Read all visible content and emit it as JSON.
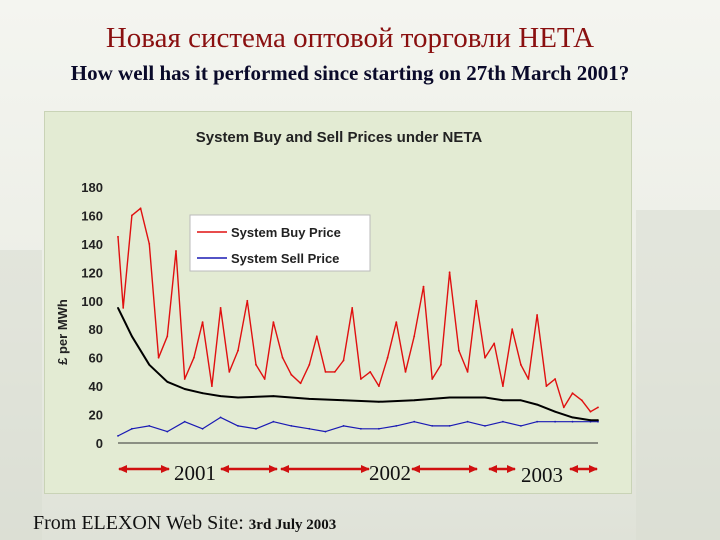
{
  "slide": {
    "title": "Новая система оптовой торговли НЕТА",
    "subtitle": "How well has it performed since starting on 27th March 2001?",
    "footer_source": "From ELEXON Web Site:",
    "footer_date": "3rd July 2003"
  },
  "colors": {
    "buy": "#e01010",
    "sell": "#1a1ab4",
    "trend": "#000000",
    "title": "#8a1010",
    "panel": "#e3ebd3",
    "arrow": "#d01010"
  },
  "chart_data": {
    "type": "line",
    "title": "System Buy and Sell Prices under NETA",
    "ylabel": "£ per MWh",
    "xlabel": "",
    "ylim": [
      0,
      180
    ],
    "yticks": [
      0,
      20,
      40,
      60,
      80,
      100,
      120,
      140,
      160,
      180
    ],
    "x_range": [
      "2001-03-27",
      "2003-07-03"
    ],
    "year_labels": [
      "2001",
      "2002",
      "2003"
    ],
    "legend": {
      "position": "top-left"
    },
    "grid": false,
    "series": [
      {
        "name": "System Buy Price",
        "color": "#e01010",
        "x": [
          "2001-03-27",
          "2001-04-05",
          "2001-04-20",
          "2001-05-05",
          "2001-05-20",
          "2001-06-05",
          "2001-06-20",
          "2001-07-05",
          "2001-07-20",
          "2001-08-05",
          "2001-08-20",
          "2001-09-05",
          "2001-09-20",
          "2001-10-05",
          "2001-10-20",
          "2001-11-05",
          "2001-11-20",
          "2001-12-05",
          "2001-12-20",
          "2002-01-05",
          "2002-01-20",
          "2002-02-05",
          "2002-02-20",
          "2002-03-05",
          "2002-03-20",
          "2002-04-05",
          "2002-04-20",
          "2002-05-05",
          "2002-05-20",
          "2002-06-05",
          "2002-06-20",
          "2002-07-05",
          "2002-07-20",
          "2002-08-05",
          "2002-08-20",
          "2002-09-05",
          "2002-09-20",
          "2002-10-05",
          "2002-10-20",
          "2002-11-05",
          "2002-11-20",
          "2002-12-05",
          "2002-12-20",
          "2003-01-05",
          "2003-01-20",
          "2003-02-05",
          "2003-02-20",
          "2003-03-05",
          "2003-03-20",
          "2003-04-05",
          "2003-04-20",
          "2003-05-05",
          "2003-05-20",
          "2003-06-05",
          "2003-06-20",
          "2003-07-03"
        ],
        "values": [
          145,
          95,
          160,
          165,
          140,
          60,
          75,
          135,
          45,
          60,
          85,
          40,
          95,
          50,
          65,
          100,
          55,
          45,
          85,
          60,
          48,
          42,
          55,
          75,
          50,
          50,
          58,
          95,
          45,
          50,
          40,
          60,
          85,
          50,
          75,
          110,
          45,
          55,
          120,
          65,
          50,
          100,
          60,
          70,
          40,
          80,
          55,
          45,
          90,
          40,
          45,
          25,
          35,
          30,
          22,
          25
        ]
      },
      {
        "name": "System Sell Price",
        "color": "#1a1ab4",
        "x": [
          "2001-03-27",
          "2001-04-20",
          "2001-05-20",
          "2001-06-20",
          "2001-07-20",
          "2001-08-20",
          "2001-09-20",
          "2001-10-20",
          "2001-11-20",
          "2001-12-20",
          "2002-01-20",
          "2002-02-20",
          "2002-03-20",
          "2002-04-20",
          "2002-05-20",
          "2002-06-20",
          "2002-07-20",
          "2002-08-20",
          "2002-09-20",
          "2002-10-20",
          "2002-11-20",
          "2002-12-20",
          "2003-01-20",
          "2003-02-20",
          "2003-03-20",
          "2003-04-20",
          "2003-05-20",
          "2003-06-20",
          "2003-07-03"
        ],
        "values": [
          5,
          10,
          12,
          8,
          15,
          10,
          18,
          12,
          10,
          15,
          12,
          10,
          8,
          12,
          10,
          10,
          12,
          15,
          12,
          12,
          15,
          12,
          15,
          12,
          15,
          15,
          15,
          15,
          15
        ]
      },
      {
        "name": "Trend",
        "color": "#000000",
        "x": [
          "2001-03-27",
          "2001-04-20",
          "2001-05-20",
          "2001-06-20",
          "2001-07-20",
          "2001-08-20",
          "2001-09-20",
          "2001-10-20",
          "2001-12-20",
          "2002-02-20",
          "2002-04-20",
          "2002-06-20",
          "2002-08-20",
          "2002-10-20",
          "2002-12-20",
          "2003-01-20",
          "2003-02-20",
          "2003-03-20",
          "2003-04-20",
          "2003-05-20",
          "2003-06-20",
          "2003-07-03"
        ],
        "values": [
          95,
          75,
          55,
          43,
          38,
          35,
          33,
          32,
          33,
          31,
          30,
          29,
          30,
          32,
          32,
          30,
          30,
          27,
          22,
          18,
          16,
          16
        ]
      }
    ]
  }
}
